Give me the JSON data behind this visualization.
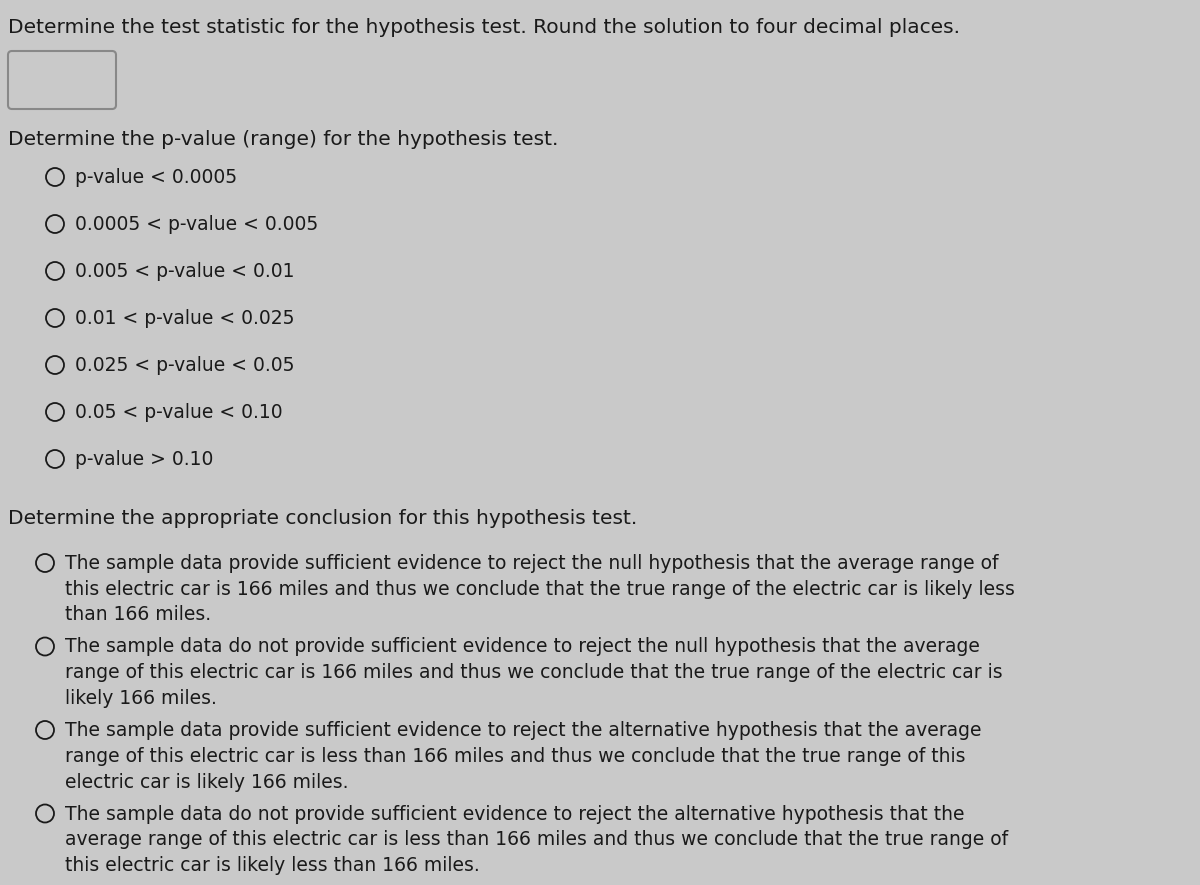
{
  "background_color": "#c9c9c9",
  "text_color": "#1a1a1a",
  "line1": "Determine the test statistic for the hypothesis test. Round the solution to four decimal places.",
  "section2_header": "Determine the p-value (range) for the hypothesis test.",
  "pvalue_options": [
    "p-value < 0.0005",
    "0.0005 < p-value < 0.005",
    "0.005 < p-value < 0.01",
    "0.01 < p-value < 0.025",
    "0.025 < p-value < 0.05",
    "0.05 < p-value < 0.10",
    "p-value > 0.10"
  ],
  "section3_header": "Determine the appropriate conclusion for this hypothesis test.",
  "conclusion_options": [
    "The sample data provide sufficient evidence to reject the null hypothesis that the average range of\nthis electric car is 166 miles and thus we conclude that the true range of the electric car is likely less\nthan 166 miles.",
    "The sample data do not provide sufficient evidence to reject the null hypothesis that the average\nrange of this electric car is 166 miles and thus we conclude that the true range of the electric car is\nlikely 166 miles.",
    "The sample data provide sufficient evidence to reject the alternative hypothesis that the average\nrange of this electric car is less than 166 miles and thus we conclude that the true range of this\nelectric car is likely 166 miles.",
    "The sample data do not provide sufficient evidence to reject the alternative hypothesis that the\naverage range of this electric car is less than 166 miles and thus we conclude that the true range of\nthis electric car is likely less than 166 miles."
  ],
  "title_fontsize": 14.5,
  "header_fontsize": 14.5,
  "option_fontsize": 13.5,
  "conclusion_fontsize": 13.5
}
